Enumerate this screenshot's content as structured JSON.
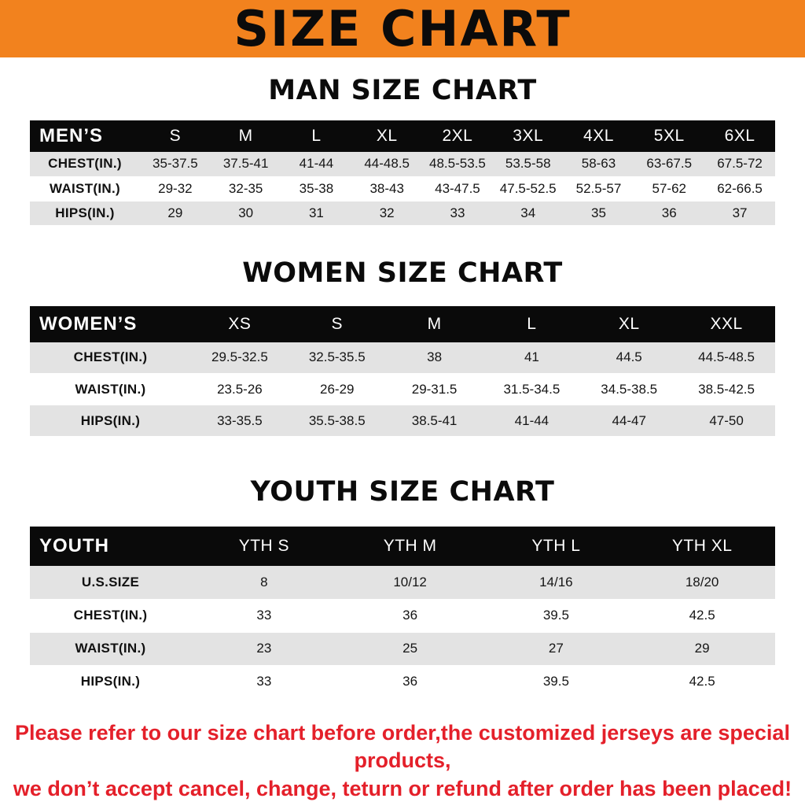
{
  "banner": {
    "title": "SIZE CHART",
    "bg_color": "#f2821e"
  },
  "sections": {
    "men": {
      "heading": "MAN SIZE CHART",
      "table": {
        "title": "MEN’S",
        "columns": [
          "S",
          "M",
          "L",
          "XL",
          "2XL",
          "3XL",
          "4XL",
          "5XL",
          "6XL"
        ],
        "rows": [
          {
            "label": "CHEST(IN.)",
            "values": [
              "35-37.5",
              "37.5-41",
              "41-44",
              "44-48.5",
              "48.5-53.5",
              "53.5-58",
              "58-63",
              "63-67.5",
              "67.5-72"
            ]
          },
          {
            "label": "WAIST(IN.)",
            "values": [
              "29-32",
              "32-35",
              "35-38",
              "38-43",
              "43-47.5",
              "47.5-52.5",
              "52.5-57",
              "57-62",
              "62-66.5"
            ]
          },
          {
            "label": "HIPS(IN.)",
            "values": [
              "29",
              "30",
              "31",
              "32",
              "33",
              "34",
              "35",
              "36",
              "37"
            ]
          }
        ]
      }
    },
    "women": {
      "heading": "WOMEN SIZE CHART",
      "table": {
        "title": "WOMEN’S",
        "columns": [
          "XS",
          "S",
          "M",
          "L",
          "XL",
          "XXL"
        ],
        "rows": [
          {
            "label": "CHEST(IN.)",
            "values": [
              "29.5-32.5",
              "32.5-35.5",
              "38",
              "41",
              "44.5",
              "44.5-48.5"
            ]
          },
          {
            "label": "WAIST(IN.)",
            "values": [
              "23.5-26",
              "26-29",
              "29-31.5",
              "31.5-34.5",
              "34.5-38.5",
              "38.5-42.5"
            ]
          },
          {
            "label": "HIPS(IN.)",
            "values": [
              "33-35.5",
              "35.5-38.5",
              "38.5-41",
              "41-44",
              "44-47",
              "47-50"
            ]
          }
        ]
      }
    },
    "youth": {
      "heading": "YOUTH SIZE CHART",
      "table": {
        "title": "YOUTH",
        "columns": [
          "YTH S",
          "YTH M",
          "YTH L",
          "YTH XL"
        ],
        "rows": [
          {
            "label": "U.S.SIZE",
            "values": [
              "8",
              "10/12",
              "14/16",
              "18/20"
            ]
          },
          {
            "label": "CHEST(IN.)",
            "values": [
              "33",
              "36",
              "39.5",
              "42.5"
            ]
          },
          {
            "label": "WAIST(IN.)",
            "values": [
              "23",
              "25",
              "27",
              "29"
            ]
          },
          {
            "label": "HIPS(IN.)",
            "values": [
              "33",
              "36",
              "39.5",
              "42.5"
            ]
          }
        ]
      }
    }
  },
  "note": {
    "color": "#e4202a",
    "line1": "Please refer to our size chart before order,the customized jerseys are special products,",
    "line2": "we don’t accept cancel, change, teturn or refund after order has been placed!"
  }
}
